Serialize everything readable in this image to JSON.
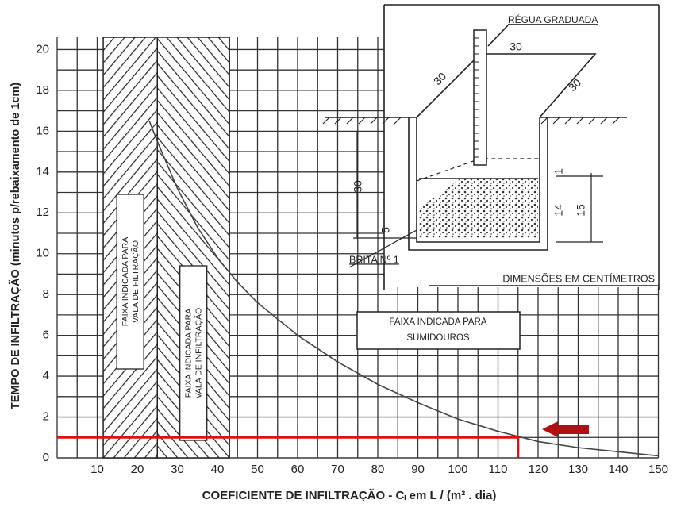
{
  "chart_data": {
    "type": "line",
    "x_label": "COEFICIENTE DE INFILTRAÇÃO - Cᵢ em L / (m² . dia)",
    "y_label": "TEMPO DE INFILTRAÇÃO (minutos p/rebaixamento de 1cm)",
    "xlim": [
      0,
      150
    ],
    "ylim": [
      0,
      20.6
    ],
    "xticks": [
      10,
      20,
      30,
      40,
      50,
      60,
      70,
      80,
      90,
      100,
      110,
      120,
      130,
      140,
      150
    ],
    "yticks": [
      0,
      2,
      4,
      6,
      8,
      10,
      12,
      14,
      16,
      18,
      20
    ],
    "grid": true,
    "curve": {
      "color": "#444444",
      "x": [
        23,
        25,
        30,
        35,
        40,
        45,
        50,
        60,
        70,
        80,
        90,
        100,
        110,
        120,
        130,
        140,
        150
      ],
      "y": [
        16.5,
        15.5,
        13.2,
        11.3,
        9.8,
        8.6,
        7.6,
        6,
        4.7,
        3.6,
        2.7,
        1.9,
        1.3,
        0.8,
        0.5,
        0.3,
        0.1
      ]
    },
    "bands": [
      {
        "x": [
          11.5,
          25
        ],
        "label": [
          "FAIXA INDICADA PARA",
          "VALA DE FILTRAÇÃO"
        ]
      },
      {
        "x": [
          25,
          43
        ],
        "label": [
          "FAIXA INDICADA PARA",
          "VALA DE INFILTRAÇÃO"
        ]
      }
    ],
    "sumidouros": {
      "label": [
        "FAIXA INDICADA PARA",
        "SUMIDOUROS"
      ]
    },
    "highlight": {
      "x": 115,
      "y": 1,
      "color": "#e01010"
    },
    "inset": {
      "title": "RÉGUA GRADUADA",
      "note": "DIMENSÕES EM CENTÍMETROS",
      "material": "BRITA Nº 1",
      "dims": [
        "30",
        "30",
        "30",
        "30",
        "1",
        "14",
        "15",
        "5"
      ]
    }
  }
}
